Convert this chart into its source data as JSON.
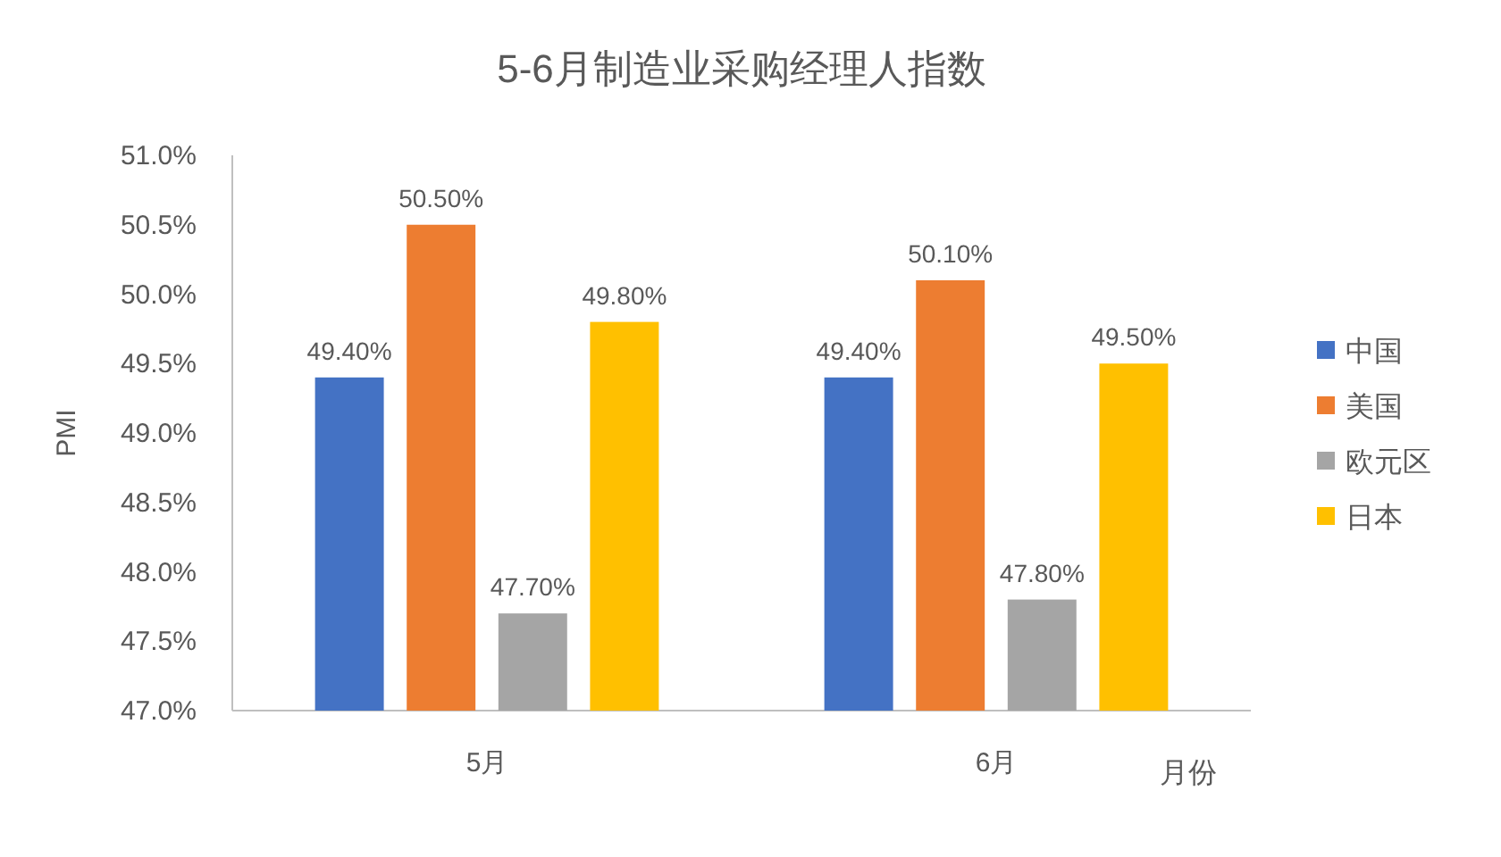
{
  "chart_data": {
    "type": "bar",
    "title": "5-6月制造业采购经理人指数",
    "ylabel": "PMI",
    "xlabel": "月份",
    "categories": [
      "5月",
      "6月"
    ],
    "series": [
      {
        "name": "中国",
        "color": "#4472c4",
        "values": [
          49.4,
          49.4
        ],
        "value_labels": [
          "49.40%",
          "49.40%"
        ]
      },
      {
        "name": "美国",
        "color": "#ed7d31",
        "values": [
          50.5,
          50.1
        ],
        "value_labels": [
          "50.50%",
          "50.10%"
        ]
      },
      {
        "name": "欧元区",
        "color": "#a5a5a5",
        "values": [
          47.7,
          47.8
        ],
        "value_labels": [
          "47.70%",
          "47.80%"
        ]
      },
      {
        "name": "日本",
        "color": "#ffc000",
        "values": [
          49.8,
          49.5
        ],
        "value_labels": [
          "49.80%",
          "49.50%"
        ]
      }
    ],
    "ylim": [
      47,
      51
    ],
    "yticks": [
      {
        "value": 47,
        "label": "47.0%"
      },
      {
        "value": 47.5,
        "label": "47.5%"
      },
      {
        "value": 48,
        "label": "48.0%"
      },
      {
        "value": 48.5,
        "label": "48.5%"
      },
      {
        "value": 49,
        "label": "49.0%"
      },
      {
        "value": 49.5,
        "label": "49.5%"
      },
      {
        "value": 50,
        "label": "50.0%"
      },
      {
        "value": 50.5,
        "label": "50.5%"
      },
      {
        "value": 51,
        "label": "51.0%"
      }
    ],
    "legend": "right"
  }
}
